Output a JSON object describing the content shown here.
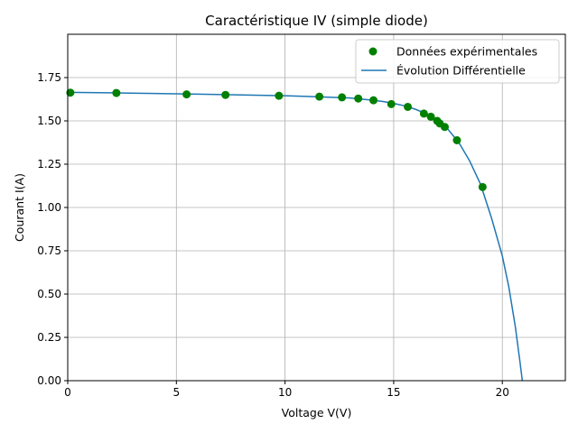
{
  "chart_data": {
    "type": "scatter",
    "title": "Caractéristique IV (simple diode)",
    "xlabel": "Voltage V(V)",
    "ylabel": "Courant I(A)",
    "xlim": [
      0,
      22.9
    ],
    "ylim": [
      0,
      2.0
    ],
    "x_ticks": [
      0,
      5,
      10,
      15,
      20
    ],
    "x_tick_labels": [
      "0",
      "5",
      "10",
      "15",
      "20"
    ],
    "y_ticks": [
      0,
      0.25,
      0.5,
      0.75,
      1.0,
      1.25,
      1.5,
      1.75
    ],
    "y_tick_labels": [
      "0.00",
      "0.25",
      "0.50",
      "0.75",
      "1.00",
      "1.25",
      "1.50",
      "1.75"
    ],
    "grid": true,
    "legend_position": "top-right",
    "series": [
      {
        "name": "Données expérimentales",
        "kind": "scatter",
        "color": "#008000",
        "points": [
          [
            0.12,
            1.663
          ],
          [
            2.24,
            1.661
          ],
          [
            5.47,
            1.653
          ],
          [
            7.26,
            1.65
          ],
          [
            9.72,
            1.645
          ],
          [
            11.58,
            1.64
          ],
          [
            12.62,
            1.636
          ],
          [
            13.37,
            1.629
          ],
          [
            14.07,
            1.619
          ],
          [
            14.89,
            1.597
          ],
          [
            15.65,
            1.581
          ],
          [
            16.39,
            1.542
          ],
          [
            16.71,
            1.524
          ],
          [
            17.0,
            1.5
          ],
          [
            17.12,
            1.485
          ],
          [
            17.35,
            1.465
          ],
          [
            17.91,
            1.388
          ],
          [
            19.09,
            1.118
          ]
        ]
      },
      {
        "name": "Évolution Différentielle",
        "kind": "line",
        "color": "#1f77b4",
        "points": [
          [
            0,
            1.665
          ],
          [
            2,
            1.662
          ],
          [
            4,
            1.658
          ],
          [
            6,
            1.654
          ],
          [
            8,
            1.65
          ],
          [
            10,
            1.645
          ],
          [
            11,
            1.641
          ],
          [
            12,
            1.637
          ],
          [
            13,
            1.632
          ],
          [
            14,
            1.62
          ],
          [
            14.5,
            1.612
          ],
          [
            15,
            1.601
          ],
          [
            15.5,
            1.587
          ],
          [
            16,
            1.567
          ],
          [
            16.5,
            1.541
          ],
          [
            17,
            1.503
          ],
          [
            17.5,
            1.451
          ],
          [
            18,
            1.375
          ],
          [
            18.5,
            1.268
          ],
          [
            19,
            1.133
          ],
          [
            19.5,
            0.94
          ],
          [
            20,
            0.72
          ],
          [
            20.3,
            0.54
          ],
          [
            20.6,
            0.31
          ],
          [
            20.8,
            0.12
          ],
          [
            20.92,
            0.0
          ]
        ]
      }
    ]
  }
}
